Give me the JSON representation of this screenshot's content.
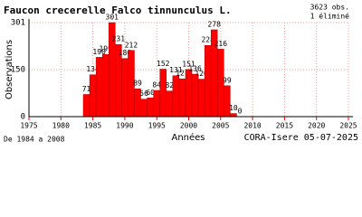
{
  "chart_data": {
    "type": "bar",
    "title": "Faucon crecerelle  Falco tinnunculus L.",
    "annotations": [
      "3623 obs.",
      "1 éliminé"
    ],
    "ylabel": "Observations",
    "xlabel": "Années",
    "footer_left": "De 1984 a 2008",
    "footer_right": "CORA-Isere 05-07-2025",
    "color": "#ff0000",
    "x": [
      1984,
      1985,
      1986,
      1987,
      1988,
      1989,
      1990,
      1991,
      1992,
      1993,
      1994,
      1995,
      1996,
      1997,
      1998,
      1999,
      2000,
      2001,
      2002,
      2003,
      2004,
      2005,
      2006,
      2007,
      2008
    ],
    "values": [
      71,
      134,
      190,
      199,
      301,
      231,
      186,
      212,
      89,
      56,
      60,
      84,
      152,
      82,
      131,
      121,
      151,
      136,
      120,
      228,
      278,
      216,
      99,
      10,
      0
    ],
    "xlim": [
      1975,
      2025
    ],
    "xticks": [
      1975,
      1980,
      1985,
      1990,
      1995,
      2000,
      2005,
      2010,
      2015,
      2020,
      2025
    ],
    "ylim": [
      0,
      301
    ],
    "yticks": [
      0,
      150,
      301
    ],
    "grid": true
  }
}
